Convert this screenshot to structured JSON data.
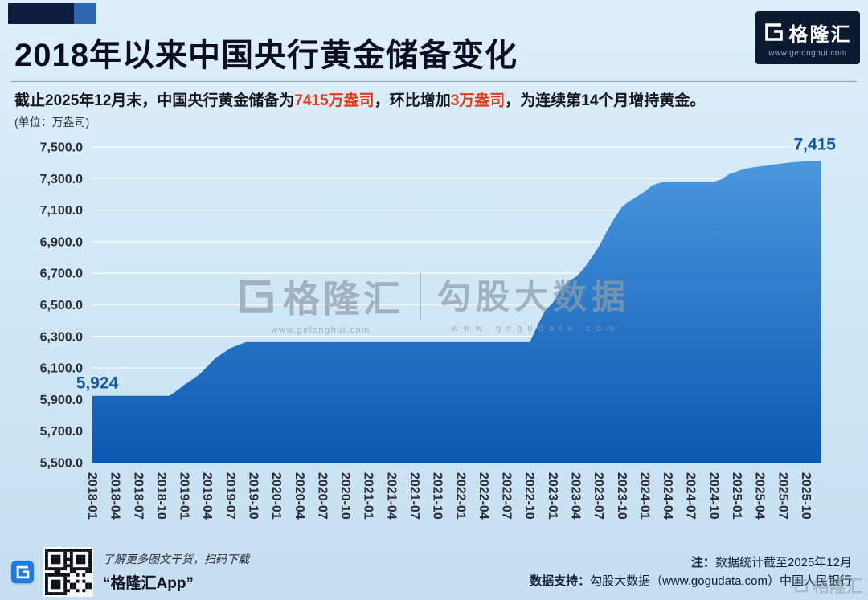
{
  "header": {
    "title": "2018年以来中国央行黄金储备变化",
    "subtitle_segments": [
      {
        "text": "截止2025年12月末，中国央行黄金储备为",
        "style": "normal"
      },
      {
        "text": "7415万盎司",
        "style": "red"
      },
      {
        "text": "，环比增加",
        "style": "normal"
      },
      {
        "text": "3万盎司",
        "style": "red"
      },
      {
        "text": "，为连续第14个月增持黄金。",
        "style": "normal"
      }
    ],
    "logo": {
      "brand": "格隆汇",
      "url": "www.gelonghui.com"
    }
  },
  "chart_data": {
    "type": "area",
    "title": "2018年以来中国央行黄金储备变化",
    "unit_label": "(单位：万盎司)",
    "xlabel": "",
    "ylabel": "",
    "ylim": [
      5500,
      7500
    ],
    "ytick_step": 200,
    "x_tick_every": 3,
    "grid": true,
    "months": [
      "2018-01",
      "2018-02",
      "2018-03",
      "2018-04",
      "2018-05",
      "2018-06",
      "2018-07",
      "2018-08",
      "2018-09",
      "2018-10",
      "2018-11",
      "2018-12",
      "2019-01",
      "2019-02",
      "2019-03",
      "2019-04",
      "2019-05",
      "2019-06",
      "2019-07",
      "2019-08",
      "2019-09",
      "2019-10",
      "2019-11",
      "2019-12",
      "2020-01",
      "2020-02",
      "2020-03",
      "2020-04",
      "2020-05",
      "2020-06",
      "2020-07",
      "2020-08",
      "2020-09",
      "2020-10",
      "2020-11",
      "2020-12",
      "2021-01",
      "2021-02",
      "2021-03",
      "2021-04",
      "2021-05",
      "2021-06",
      "2021-07",
      "2021-08",
      "2021-09",
      "2021-10",
      "2021-11",
      "2021-12",
      "2022-01",
      "2022-02",
      "2022-03",
      "2022-04",
      "2022-05",
      "2022-06",
      "2022-07",
      "2022-08",
      "2022-09",
      "2022-10",
      "2022-11",
      "2022-12",
      "2023-01",
      "2023-02",
      "2023-03",
      "2023-04",
      "2023-05",
      "2023-06",
      "2023-07",
      "2023-08",
      "2023-09",
      "2023-10",
      "2023-11",
      "2023-12",
      "2024-01",
      "2024-02",
      "2024-03",
      "2024-04",
      "2024-05",
      "2024-06",
      "2024-07",
      "2024-08",
      "2024-09",
      "2024-10",
      "2024-11",
      "2024-12",
      "2025-01",
      "2025-02",
      "2025-03",
      "2025-04",
      "2025-05",
      "2025-06",
      "2025-07",
      "2025-08",
      "2025-09",
      "2025-10",
      "2025-11",
      "2025-12"
    ],
    "values": [
      5924,
      5924,
      5924,
      5924,
      5924,
      5924,
      5924,
      5924,
      5924,
      5924,
      5924,
      5956,
      5994,
      6026,
      6062,
      6110,
      6161,
      6194,
      6226,
      6245,
      6264,
      6264,
      6264,
      6264,
      6264,
      6264,
      6264,
      6264,
      6264,
      6264,
      6264,
      6264,
      6264,
      6264,
      6264,
      6264,
      6264,
      6264,
      6264,
      6264,
      6264,
      6264,
      6264,
      6264,
      6264,
      6264,
      6264,
      6264,
      6264,
      6264,
      6264,
      6264,
      6264,
      6264,
      6264,
      6264,
      6264,
      6264,
      6367,
      6464,
      6512,
      6592,
      6650,
      6676,
      6727,
      6795,
      6869,
      6962,
      7046,
      7120,
      7158,
      7187,
      7219,
      7258,
      7274,
      7280,
      7280,
      7280,
      7280,
      7280,
      7280,
      7280,
      7296,
      7329,
      7345,
      7361,
      7370,
      7377,
      7383,
      7390,
      7396,
      7402,
      7406,
      7409,
      7412,
      7415
    ],
    "first_point_label": "5,924",
    "last_point_label": "7,415",
    "area_top_color": "#4a97dd",
    "area_bottom_color": "#0b58b2",
    "label_color": "#15599f"
  },
  "watermark": {
    "brand": "格隆汇",
    "brand_url": "www.gelonghui.com",
    "partner": "勾股大数据",
    "partner_url": "w w w . g o g u d a t a . c o m",
    "corner_brand": "格隆汇"
  },
  "footer": {
    "qr_caption": "了解更多图文干货，扫码下载",
    "app_label": "“格隆汇App”",
    "note_prefix": "注：",
    "note": "数据统计截至2025年12月",
    "support_prefix": "数据支持：",
    "support": "勾股大数据（www.gogudata.com）中国人民银行"
  },
  "colors": {
    "accent_red": "#e5391b",
    "value_label_blue": "#15599f",
    "navy": "#0b1931"
  }
}
